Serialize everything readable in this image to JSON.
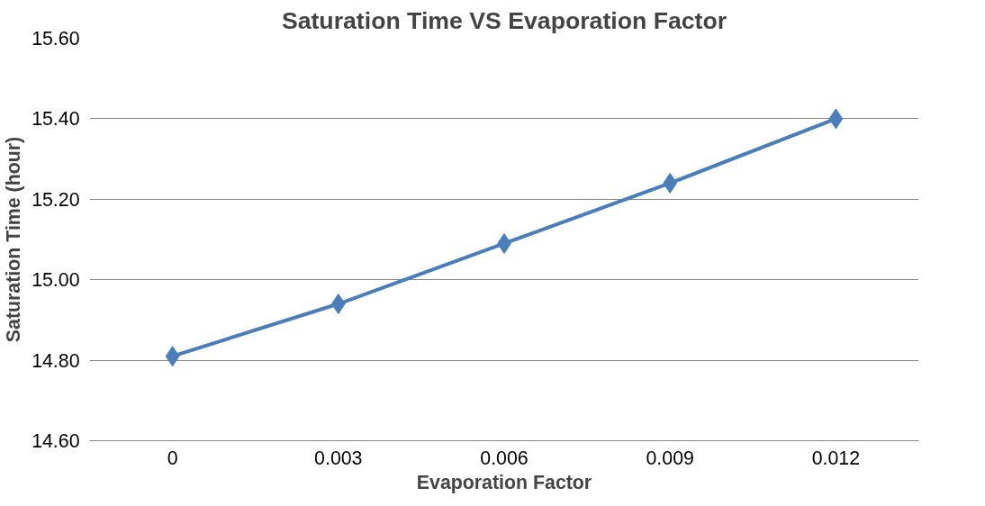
{
  "chart_data": {
    "type": "line",
    "title": "Saturation Time VS Evaporation Factor",
    "xlabel": "Evaporation Factor",
    "ylabel": "Saturation Time (hour)",
    "categories": [
      "0",
      "0.003",
      "0.006",
      "0.009",
      "0.012"
    ],
    "series": [
      {
        "color": "#4a7ebb",
        "values": [
          14.81,
          14.94,
          15.09,
          15.24,
          15.4
        ]
      }
    ],
    "ylim": [
      14.6,
      15.6
    ],
    "yticks": [
      {
        "value": 14.6,
        "label": "14.60"
      },
      {
        "value": 14.8,
        "label": "14.80"
      },
      {
        "value": 15.0,
        "label": "15.00"
      },
      {
        "value": 15.2,
        "label": "15.20"
      },
      {
        "value": 15.4,
        "label": "15.40"
      },
      {
        "value": 15.6,
        "label": "15.60"
      }
    ],
    "grid": "y",
    "marker": "diamond",
    "line_style": "solid"
  }
}
